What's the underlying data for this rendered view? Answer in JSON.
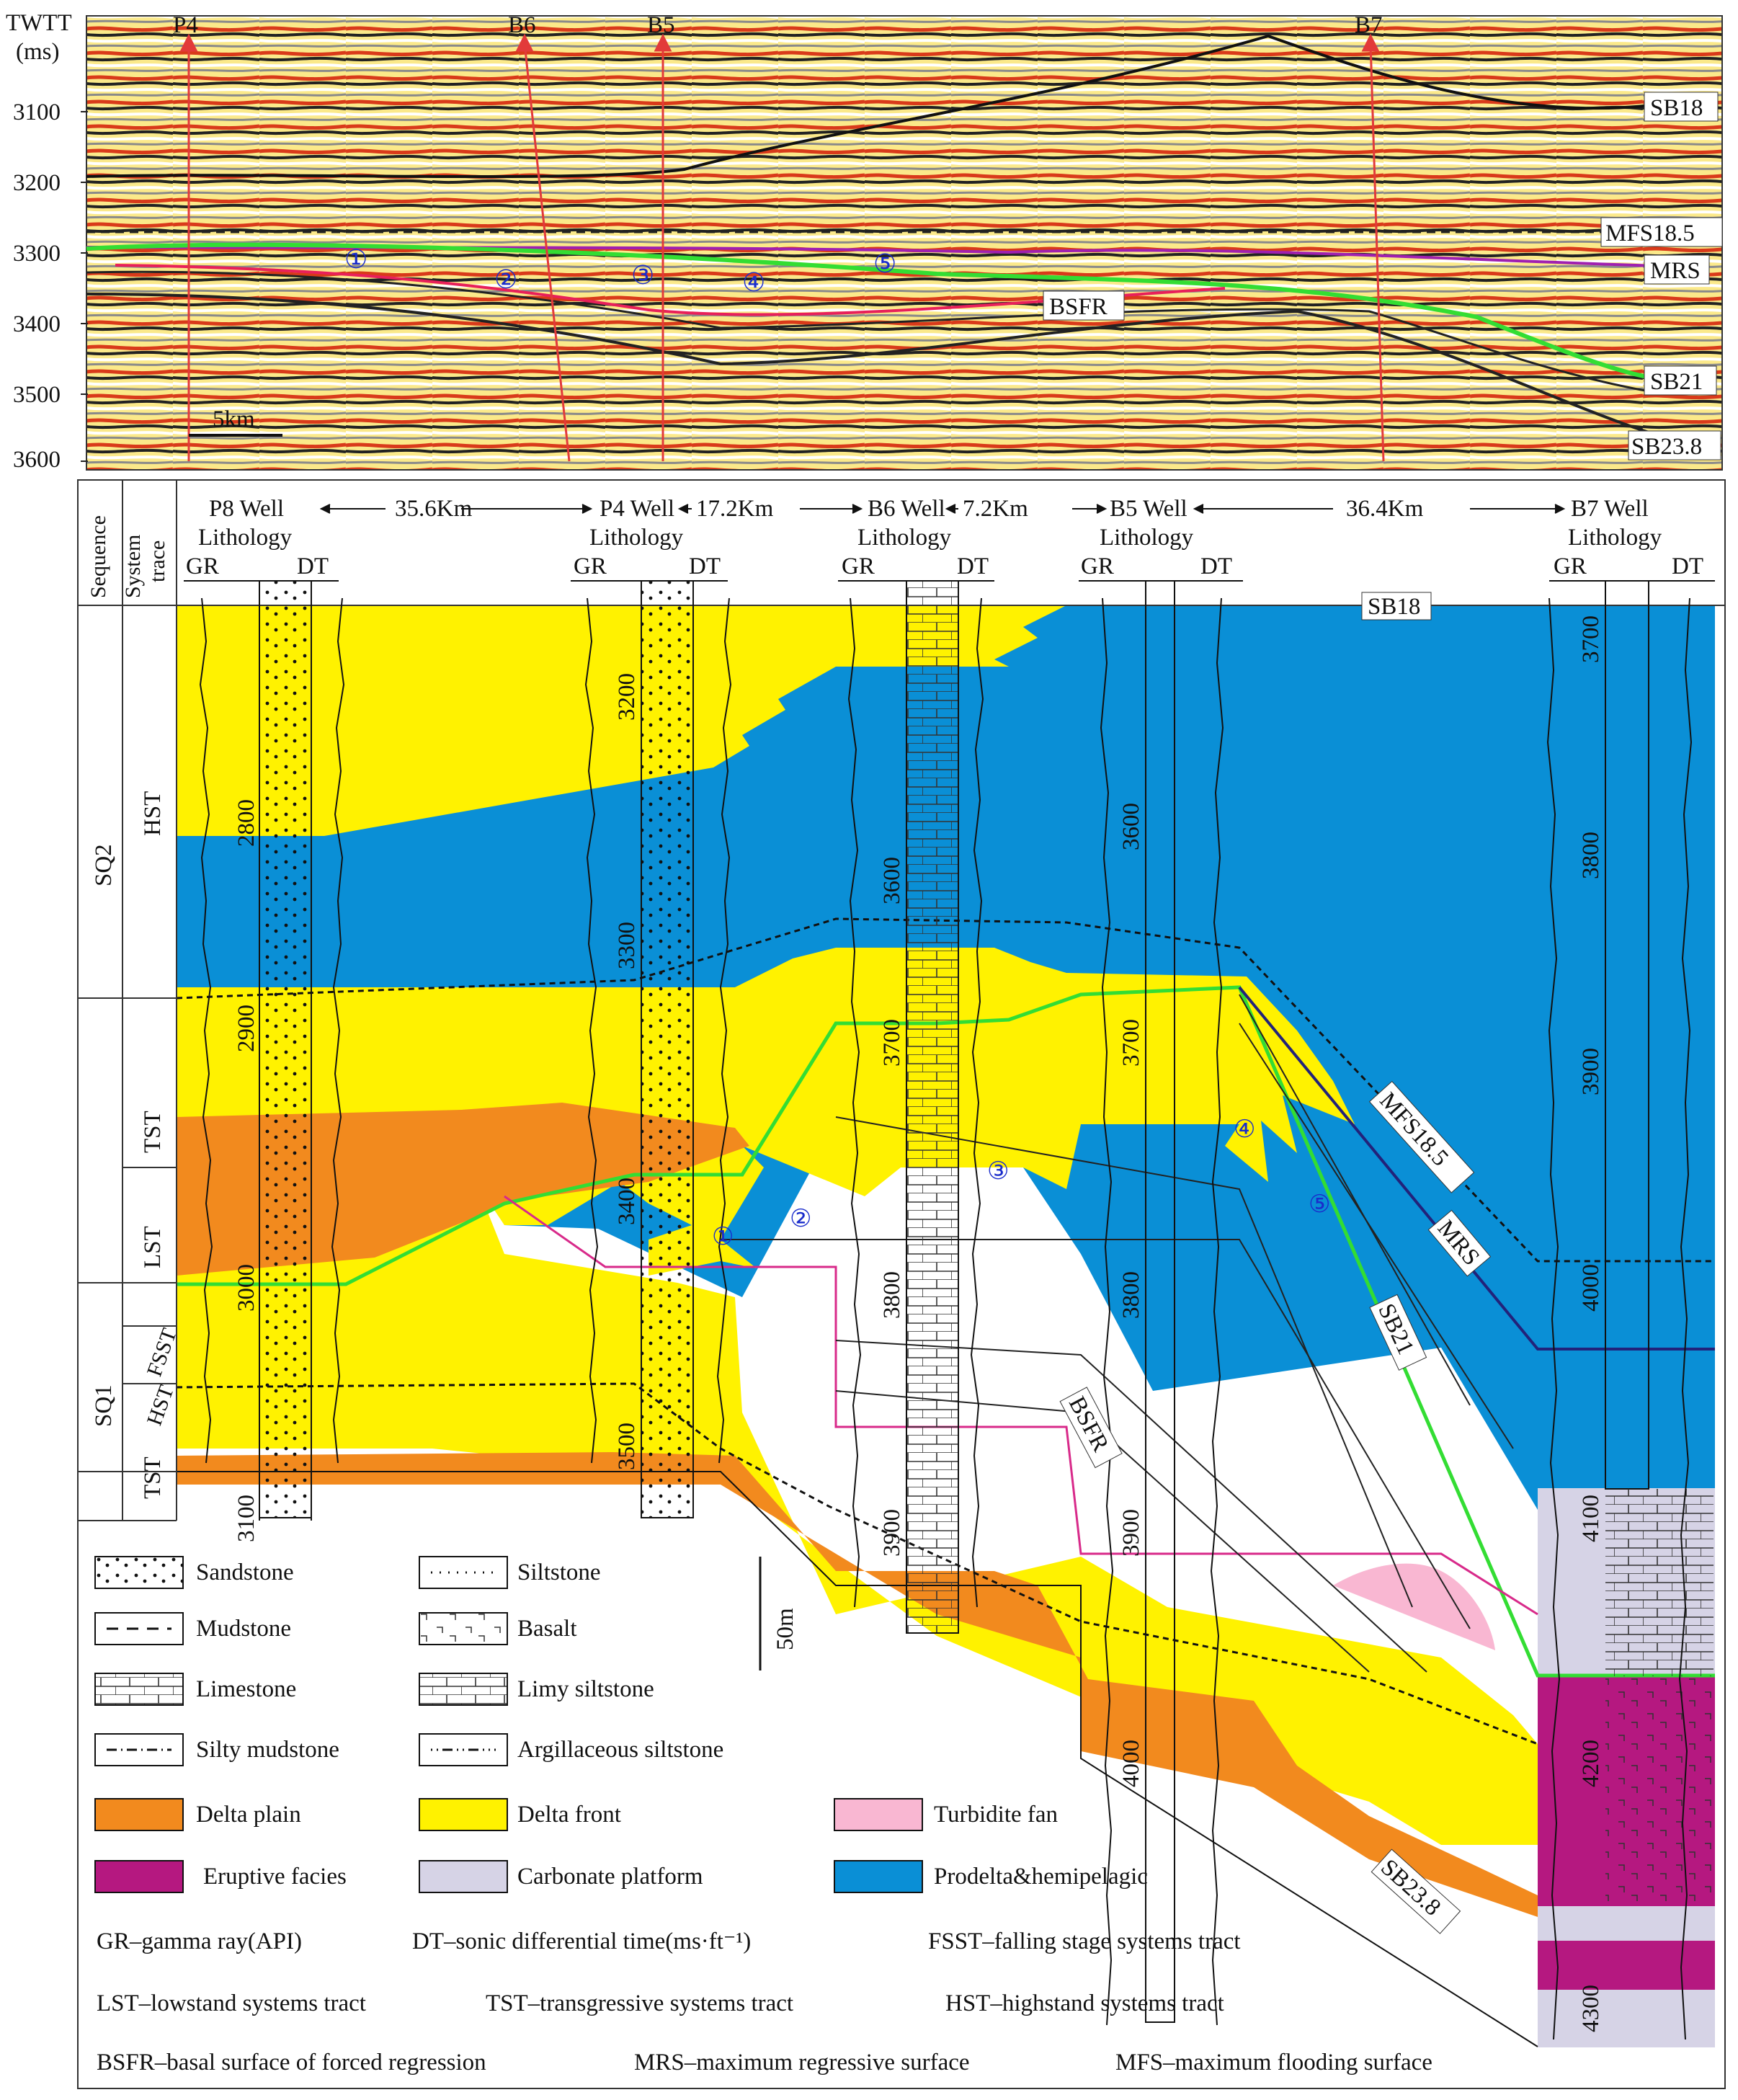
{
  "seismic": {
    "axis_title_line1": "TWTT",
    "axis_title_line2": "(ms)",
    "time_ticks": [
      "3100",
      "3200",
      "3300",
      "3400",
      "3500",
      "3600"
    ],
    "wells": [
      "P4",
      "B6",
      "B5",
      "B7"
    ],
    "surfaces": {
      "sb18": "SB18",
      "mfs": "MFS18.5",
      "mrs": "MRS",
      "sb21": "SB21",
      "sb238": "SB23.8",
      "bsfr": "BSFR"
    },
    "scale_bar": "5km",
    "markers": [
      "①",
      "②",
      "③",
      "④",
      "⑤"
    ]
  },
  "section": {
    "header_sequence": "Sequence",
    "header_system_line1": "System",
    "header_system_line2": "trace",
    "sequences": [
      "SQ2",
      "SQ1"
    ],
    "tracts": {
      "hst": "HST",
      "tst": "TST",
      "lst": "LST",
      "fsst": "FSST",
      "hst_lower": "HST",
      "tst_lower": "TST"
    },
    "wells": [
      {
        "name": "P8 Well",
        "lithology": "Lithology",
        "gr": "GR",
        "dt": "DT",
        "depths": [
          "2800",
          "2900",
          "3000",
          "3100"
        ]
      },
      {
        "name": "P4 Well",
        "lithology": "Lithology",
        "gr": "GR",
        "dt": "DT",
        "depths": [
          "3200",
          "3300",
          "3400",
          "3500"
        ]
      },
      {
        "name": "B6 Well",
        "lithology": "Lithology",
        "gr": "GR",
        "dt": "DT",
        "depths": [
          "3600",
          "3700",
          "3800",
          "3900"
        ]
      },
      {
        "name": "B5 Well",
        "lithology": "Lithology",
        "gr": "GR",
        "dt": "DT",
        "depths": [
          "3600",
          "3700",
          "3800",
          "3900",
          "4000"
        ]
      },
      {
        "name": "B7 Well",
        "lithology": "Lithology",
        "gr": "GR",
        "dt": "DT",
        "depths": [
          "3700",
          "3800",
          "3900",
          "4000",
          "4100",
          "4200",
          "4300"
        ]
      }
    ],
    "distances": [
      "35.6Km",
      "17.2Km",
      "7.2Km",
      "36.4Km"
    ],
    "surface_labels": {
      "sb18": "SB18",
      "mfs": "MFS18.5",
      "mrs": "MRS",
      "sb21": "SB21",
      "bsfr": "BSFR",
      "sb238": "SB23.8"
    },
    "markers": [
      "①",
      "②",
      "③",
      "④",
      "⑤"
    ],
    "scale": "50m"
  },
  "legend": {
    "lithology": [
      "Sandstone",
      "Siltstone",
      "Mudstone",
      "Basalt",
      "Limestone",
      "Limy siltstone",
      "Silty mudstone",
      "Argillaceous siltstone"
    ],
    "facies": [
      {
        "label": "Delta plain",
        "color": "#F28A1E"
      },
      {
        "label": "Delta front",
        "color": "#FFF200"
      },
      {
        "label": "Turbidite fan",
        "color": "#F9B7D2"
      },
      {
        "label": "Eruptive facies",
        "color": "#B51880"
      },
      {
        "label": "Carbonate platform",
        "color": "#D6D3E6"
      },
      {
        "label": "Prodelta&hemipelagic",
        "color": "#0A8FD6"
      }
    ],
    "abbreviations": [
      "GR–gamma ray(API)",
      "DT–sonic differential time(ms·ft⁻¹)",
      "FSST–falling stage systems tract",
      "LST–lowstand systems tract",
      "TST–transgressive systems tract",
      "HST–highstand systems tract",
      "BSFR–basal surface of forced regression",
      "MRS–maximum regressive surface",
      "MFS–maximum flooding surface"
    ]
  }
}
